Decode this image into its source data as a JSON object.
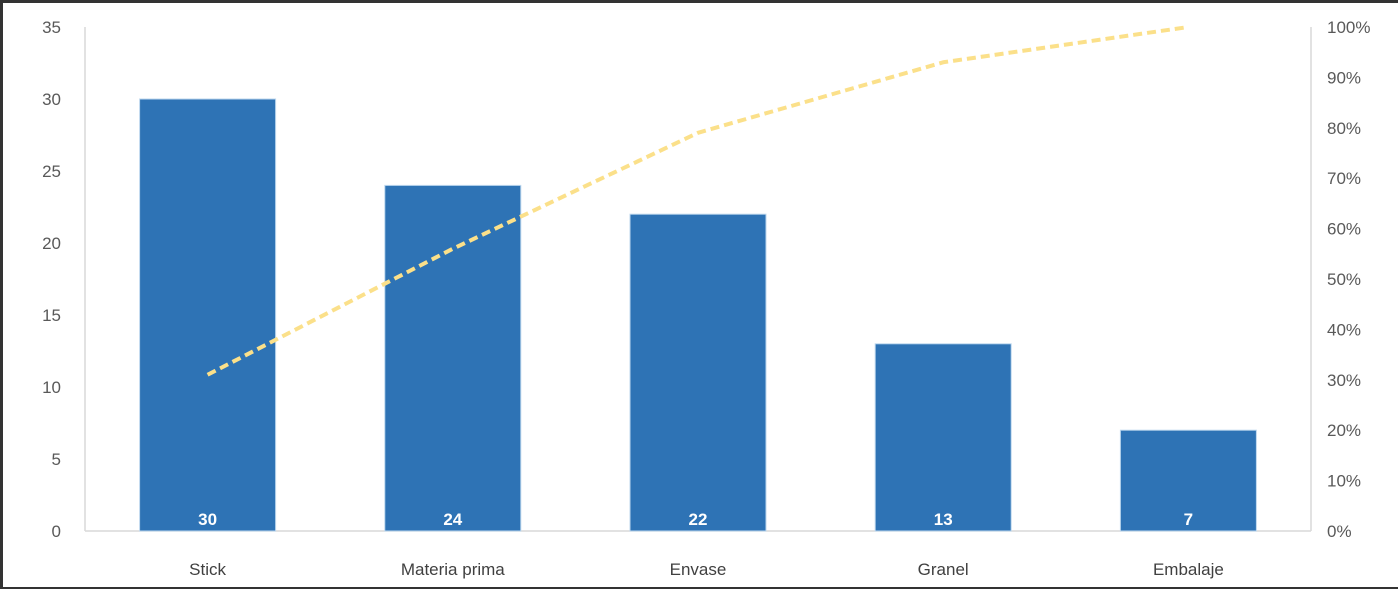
{
  "chart_data": {
    "type": "bar",
    "categories": [
      "Stick",
      "Materia prima",
      "Envase",
      "Granel",
      "Embalaje"
    ],
    "values": [
      30,
      24,
      22,
      13,
      7
    ],
    "data_labels": [
      "30",
      "24",
      "22",
      "13",
      "7"
    ],
    "line_series": {
      "type": "line",
      "axis": "secondary",
      "style": "dashed",
      "values": [
        31,
        56,
        79,
        93,
        100
      ]
    },
    "y_primary": {
      "range": [
        0,
        35
      ],
      "ticks": [
        0,
        5,
        10,
        15,
        20,
        25,
        30,
        35
      ],
      "tick_labels": [
        "0",
        "5",
        "10",
        "15",
        "20",
        "25",
        "30",
        "35"
      ]
    },
    "y_secondary": {
      "range": [
        0,
        100
      ],
      "ticks": [
        0,
        10,
        20,
        30,
        40,
        50,
        60,
        70,
        80,
        90,
        100
      ],
      "tick_labels": [
        "0%",
        "10%",
        "20%",
        "30%",
        "40%",
        "50%",
        "60%",
        "70%",
        "80%",
        "90%",
        "100%"
      ]
    },
    "grid": false,
    "title": "",
    "xlabel": "",
    "ylabel": "",
    "colors": {
      "bar": "#2e73b5",
      "bar_edge": "#bdd7ee",
      "line": "#fbe08a",
      "axis": "#d9d9d9"
    }
  }
}
